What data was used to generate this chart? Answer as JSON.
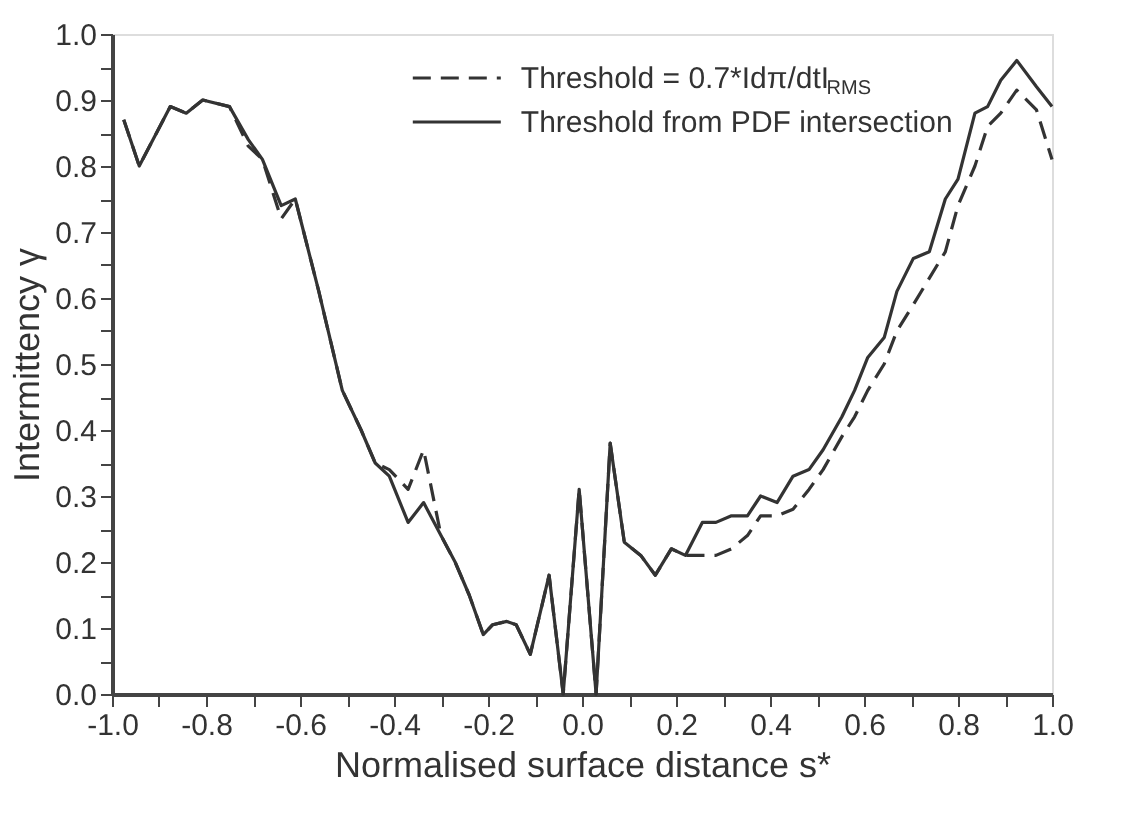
{
  "chart_data": {
    "type": "line",
    "xlabel": "Normalised surface distance s*",
    "ylabel": "Intermittency γ",
    "x": [
      -0.975,
      -0.942,
      -0.876,
      -0.842,
      -0.807,
      -0.75,
      -0.71,
      -0.68,
      -0.64,
      -0.61,
      -0.56,
      -0.51,
      -0.47,
      -0.44,
      -0.41,
      -0.37,
      -0.337,
      -0.3,
      -0.27,
      -0.24,
      -0.21,
      -0.19,
      -0.16,
      -0.14,
      -0.11,
      -0.07,
      -0.04,
      -0.006,
      0.03,
      0.06,
      0.09,
      0.125,
      0.156,
      0.19,
      0.22,
      0.256,
      0.285,
      0.318,
      0.352,
      0.38,
      0.415,
      0.449,
      0.483,
      0.513,
      0.553,
      0.58,
      0.608,
      0.643,
      0.67,
      0.705,
      0.739,
      0.773,
      0.8,
      0.836,
      0.863,
      0.891,
      0.925,
      0.967,
      1.0
    ],
    "series": [
      {
        "name": "Threshold = 0.7*Idπ/dtI$_{RMS}$",
        "color": "#333333",
        "line_style": "dashed",
        "values": [
          0.87,
          0.8,
          0.89,
          0.88,
          0.9,
          0.89,
          0.83,
          0.81,
          0.72,
          0.75,
          0.61,
          0.46,
          0.4,
          0.35,
          0.34,
          0.31,
          0.37,
          0.24,
          0.2,
          0.15,
          0.09,
          0.105,
          0.11,
          0.105,
          0.06,
          0.18,
          0.0,
          0.31,
          0.0,
          0.38,
          0.23,
          0.21,
          0.18,
          0.22,
          0.21,
          0.21,
          0.21,
          0.22,
          0.24,
          0.27,
          0.27,
          0.28,
          0.31,
          0.34,
          0.39,
          0.42,
          0.46,
          0.5,
          0.55,
          0.59,
          0.63,
          0.67,
          0.74,
          0.8,
          0.86,
          0.88,
          0.915,
          0.885,
          0.81
        ]
      },
      {
        "name": "Threshold from PDF intersection",
        "color": "#333333",
        "line_style": "solid",
        "values": [
          0.87,
          0.8,
          0.89,
          0.88,
          0.9,
          0.89,
          0.84,
          0.81,
          0.74,
          0.75,
          0.61,
          0.46,
          0.4,
          0.35,
          0.33,
          0.26,
          0.29,
          0.24,
          0.2,
          0.15,
          0.09,
          0.105,
          0.11,
          0.105,
          0.06,
          0.18,
          0.0,
          0.31,
          0.0,
          0.38,
          0.23,
          0.21,
          0.18,
          0.22,
          0.21,
          0.26,
          0.26,
          0.27,
          0.27,
          0.3,
          0.29,
          0.33,
          0.34,
          0.37,
          0.42,
          0.46,
          0.51,
          0.54,
          0.61,
          0.66,
          0.67,
          0.75,
          0.78,
          0.88,
          0.89,
          0.93,
          0.96,
          0.92,
          0.89
        ]
      }
    ],
    "xlim": [
      -1.0,
      1.0
    ],
    "xticks": [
      {
        "value": -1.0,
        "label": "-1.0"
      },
      {
        "value": -0.9,
        "label": null
      },
      -0.8,
      {
        "value": -0.7,
        "label": null
      },
      -0.6,
      {
        "value": -0.5,
        "label": null
      },
      -0.4,
      {
        "value": -0.3,
        "label": null
      },
      -0.2,
      {
        "value": -0.1,
        "label": null
      },
      {
        "value": 0.0,
        "label": "0.0"
      },
      {
        "value": 0.1,
        "label": null
      },
      0.2,
      {
        "value": 0.3,
        "label": null
      },
      0.4,
      {
        "value": 0.5,
        "label": null
      },
      0.6,
      {
        "value": 0.7,
        "label": null
      },
      0.8,
      {
        "value": 0.9,
        "label": null
      },
      {
        "value": 1.0,
        "label": "1.0"
      }
    ],
    "ylim": [
      0.0,
      1.0
    ],
    "yticks": [
      {
        "value": 0.0,
        "label": "0.0"
      },
      {
        "value": 0.05,
        "label": null
      },
      0.1,
      {
        "value": 0.15,
        "label": null
      },
      0.2,
      {
        "value": 0.25,
        "label": null
      },
      0.3,
      {
        "value": 0.35,
        "label": null
      },
      0.4,
      {
        "value": 0.45,
        "label": null
      },
      0.5,
      {
        "value": 0.55,
        "label": null
      },
      0.6,
      {
        "value": 0.65,
        "label": null
      },
      0.7,
      {
        "value": 0.75,
        "label": null
      },
      0.8,
      {
        "value": 0.85,
        "label": null
      },
      0.9,
      {
        "value": 0.95,
        "label": null
      },
      {
        "value": 1.0,
        "label": "1.0"
      }
    ],
    "grid": false,
    "legend": "top",
    "marker": "none"
  }
}
